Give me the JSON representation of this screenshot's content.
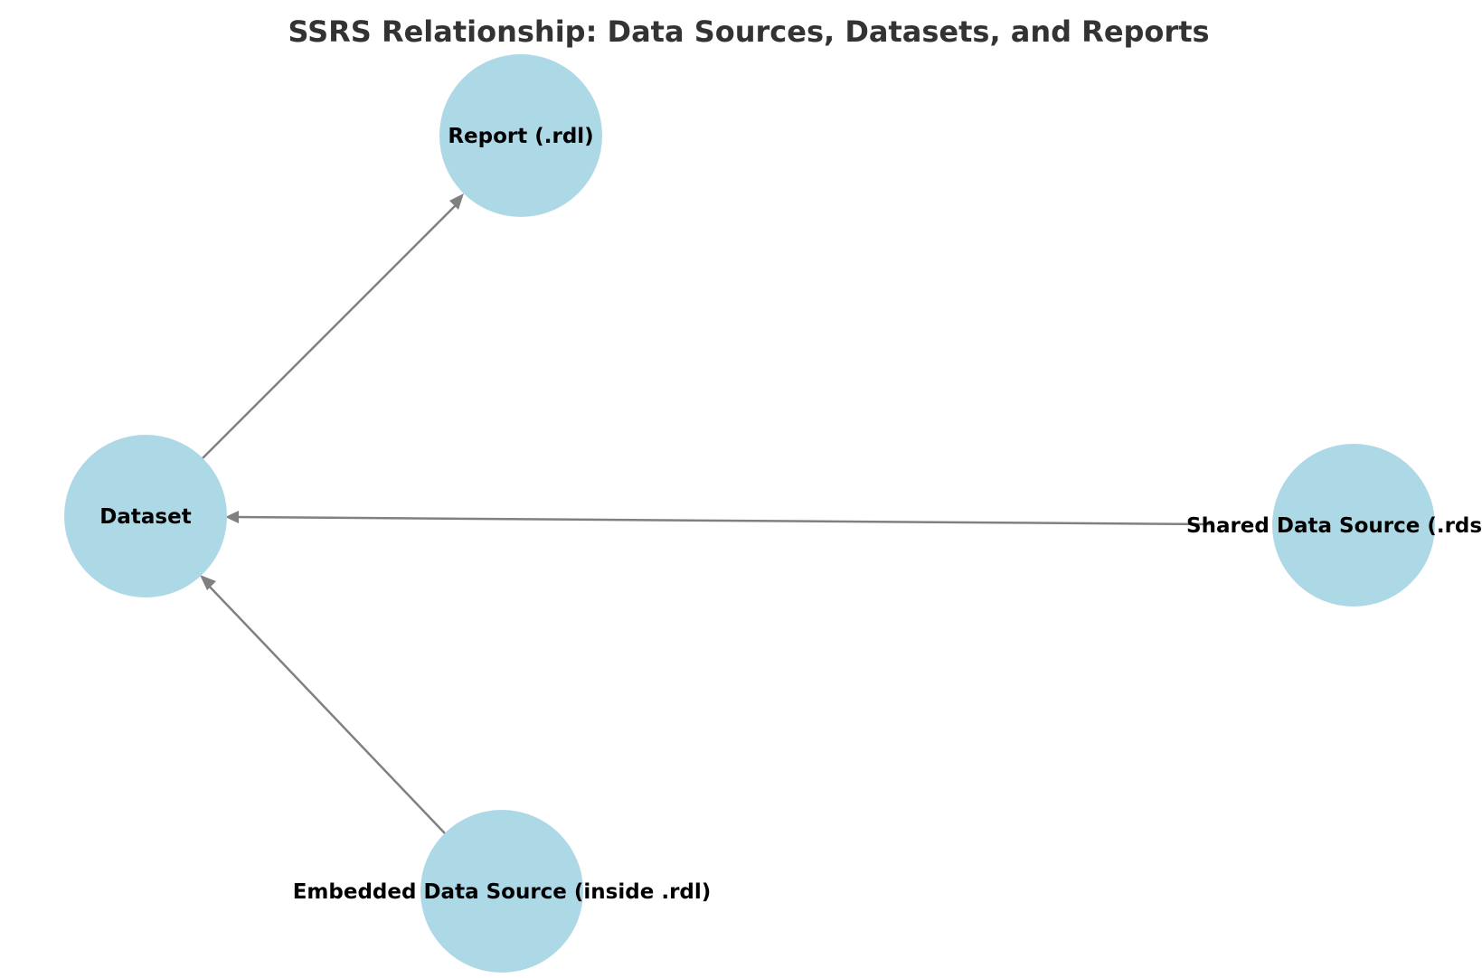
{
  "title": "SSRS Relationship: Data Sources, Datasets, and Reports",
  "colors": {
    "node_fill": "#add8e6",
    "edge": "#808080",
    "title": "#333333",
    "label": "#000000"
  },
  "nodes": {
    "report": {
      "label": "Report (.rdl)"
    },
    "dataset": {
      "label": "Dataset"
    },
    "shared_source": {
      "label": "Shared Data Source (.rds)"
    },
    "embedded_source": {
      "label": "Embedded Data Source (inside .rdl)"
    }
  },
  "edges": [
    {
      "from": "dataset",
      "to": "report"
    },
    {
      "from": "shared_source",
      "to": "dataset"
    },
    {
      "from": "embedded_source",
      "to": "dataset"
    }
  ]
}
